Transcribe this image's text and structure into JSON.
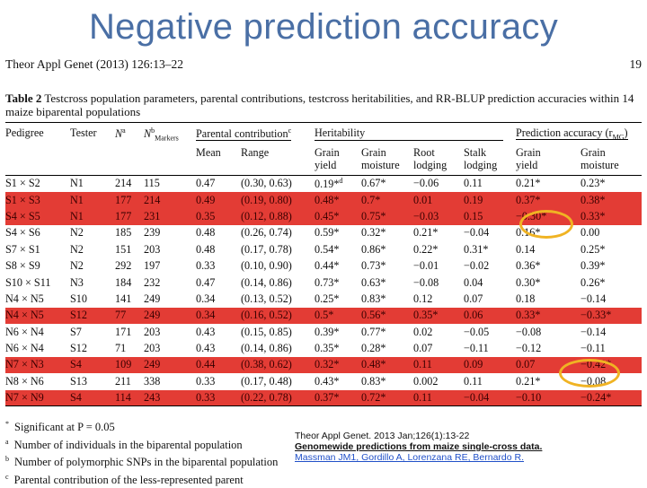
{
  "title": "Negative prediction accuracy",
  "journal": {
    "left": "Theor Appl Genet (2013) 126:13–22",
    "page": "19"
  },
  "caption": {
    "label": "Table 2",
    "text": "Testcross population parameters, parental contributions, testcross heritabilities, and RR-BLUP prediction accuracies within 14 maize biparental populations"
  },
  "headers": {
    "pedigree": "Pedigree",
    "tester": "Tester",
    "n": "N",
    "n_sup": "a",
    "markers": "N",
    "markers_sup": "b",
    "markers_sub": "Markers",
    "parental": "Parental contribution",
    "parental_sup": "c",
    "heritability": "Heritability",
    "accuracy": "Prediction accuracy (r",
    "accuracy_sub": "MG",
    "accuracy_end": ")",
    "mean": "Mean",
    "range": "Range",
    "h_gy1": "Grain",
    "h_gy2": "yield",
    "h_gm1": "Grain",
    "h_gm2": "moisture",
    "h_rl1": "Root",
    "h_rl2": "lodging",
    "h_sl1": "Stalk",
    "h_sl2": "lodging",
    "a_gy1": "Grain",
    "a_gy2": "yield",
    "a_gm1": "Grain",
    "a_gm2": "moisture"
  },
  "rows": [
    {
      "pedigree": "S1 × S2",
      "tester": "N1",
      "n": "214",
      "markers": "115",
      "mean": "0.47",
      "range": "(0.30, 0.63)",
      "gy": "0.19*",
      "gy_sup": "d",
      "gm": "0.67*",
      "rl": "−0.06",
      "sl": "0.11",
      "agy": "0.21*",
      "agm": "0.23*",
      "hl": false
    },
    {
      "pedigree": "S1 × S3",
      "tester": "N1",
      "n": "177",
      "markers": "214",
      "mean": "0.49",
      "range": "(0.19, 0.80)",
      "gy": "0.48*",
      "gy_sup": "",
      "gm": "0.7*",
      "rl": "0.01",
      "sl": "0.19",
      "agy": "0.37*",
      "agm": "0.38*",
      "hl": true
    },
    {
      "pedigree": "S4 × S5",
      "tester": "N1",
      "n": "177",
      "markers": "231",
      "mean": "0.35",
      "range": "(0.12, 0.88)",
      "gy": "0.45*",
      "gy_sup": "",
      "gm": "0.75*",
      "rl": "−0.03",
      "sl": "0.15",
      "agy": "−0.30*",
      "agm": "0.33*",
      "hl": true
    },
    {
      "pedigree": "S4 × S6",
      "tester": "N2",
      "n": "185",
      "markers": "239",
      "mean": "0.48",
      "range": "(0.26, 0.74)",
      "gy": "0.59*",
      "gy_sup": "",
      "gm": "0.32*",
      "rl": "0.21*",
      "sl": "−0.04",
      "agy": "0.16*",
      "agm": "0.00",
      "hl": false
    },
    {
      "pedigree": "S7 × S1",
      "tester": "N2",
      "n": "151",
      "markers": "203",
      "mean": "0.48",
      "range": "(0.17, 0.78)",
      "gy": "0.54*",
      "gy_sup": "",
      "gm": "0.86*",
      "rl": "0.22*",
      "sl": "0.31*",
      "agy": "0.14",
      "agm": "0.25*",
      "hl": false
    },
    {
      "pedigree": "S8 × S9",
      "tester": "N2",
      "n": "292",
      "markers": "197",
      "mean": "0.33",
      "range": "(0.10, 0.90)",
      "gy": "0.44*",
      "gy_sup": "",
      "gm": "0.73*",
      "rl": "−0.01",
      "sl": "−0.02",
      "agy": "0.36*",
      "agm": "0.39*",
      "hl": false
    },
    {
      "pedigree": "S10 × S11",
      "tester": "N3",
      "n": "184",
      "markers": "232",
      "mean": "0.47",
      "range": "(0.14, 0.86)",
      "gy": "0.73*",
      "gy_sup": "",
      "gm": "0.63*",
      "rl": "−0.08",
      "sl": "0.04",
      "agy": "0.30*",
      "agm": "0.26*",
      "hl": false
    },
    {
      "pedigree": "N4 × N5",
      "tester": "S10",
      "n": "141",
      "markers": "249",
      "mean": "0.34",
      "range": "(0.13, 0.52)",
      "gy": "0.25*",
      "gy_sup": "",
      "gm": "0.83*",
      "rl": "0.12",
      "sl": "0.07",
      "agy": "0.18",
      "agm": "−0.14",
      "hl": false
    },
    {
      "pedigree": "N4 × N5",
      "tester": "S12",
      "n": "77",
      "markers": "249",
      "mean": "0.34",
      "range": "(0.16, 0.52)",
      "gy": "0.5*",
      "gy_sup": "",
      "gm": "0.56*",
      "rl": "0.35*",
      "sl": "0.06",
      "agy": "0.33*",
      "agm": "−0.33*",
      "hl": true
    },
    {
      "pedigree": "N6 × N4",
      "tester": "S7",
      "n": "171",
      "markers": "203",
      "mean": "0.43",
      "range": "(0.15, 0.85)",
      "gy": "0.39*",
      "gy_sup": "",
      "gm": "0.77*",
      "rl": "0.02",
      "sl": "−0.05",
      "agy": "−0.08",
      "agm": "−0.14",
      "hl": false
    },
    {
      "pedigree": "N6 × N4",
      "tester": "S12",
      "n": "71",
      "markers": "203",
      "mean": "0.43",
      "range": "(0.14, 0.86)",
      "gy": "0.35*",
      "gy_sup": "",
      "gm": "0.28*",
      "rl": "0.07",
      "sl": "−0.11",
      "agy": "−0.12",
      "agm": "−0.11",
      "hl": false
    },
    {
      "pedigree": "N7 × N3",
      "tester": "S4",
      "n": "109",
      "markers": "249",
      "mean": "0.44",
      "range": "(0.38, 0.62)",
      "gy": "0.32*",
      "gy_sup": "",
      "gm": "0.48*",
      "rl": "0.11",
      "sl": "0.09",
      "agy": "0.07",
      "agm": "−0.42*",
      "hl": true
    },
    {
      "pedigree": "N8 × N6",
      "tester": "S13",
      "n": "211",
      "markers": "338",
      "mean": "0.33",
      "range": "(0.17, 0.48)",
      "gy": "0.43*",
      "gy_sup": "",
      "gm": "0.83*",
      "rl": "0.002",
      "sl": "0.11",
      "agy": "0.21*",
      "agm": "−0.08",
      "hl": false
    },
    {
      "pedigree": "N7 × N9",
      "tester": "S4",
      "n": "114",
      "markers": "243",
      "mean": "0.33",
      "range": "(0.22, 0.78)",
      "gy": "0.37*",
      "gy_sup": "",
      "gm": "0.72*",
      "rl": "0.11",
      "sl": "−0.04",
      "agy": "−0.10",
      "agm": "−0.24*",
      "hl": true
    }
  ],
  "footnotes": [
    {
      "mark": "*",
      "text": "Significant at P = 0.05"
    },
    {
      "mark": "a",
      "text": "Number of individuals in the biparental population"
    },
    {
      "mark": "b",
      "text": "Number of polymorphic SNPs in the biparental population"
    },
    {
      "mark": "c",
      "text": "Parental contribution of the less-represented parent"
    }
  ],
  "citation": {
    "line1": "Theor Appl Genet. 2013 Jan;126(1):13-22",
    "line2": "Genomewide predictions from maize single-cross data.",
    "line3": "Massman JM1, Gordillo A, Lorenzana RE, Bernardo R."
  },
  "highlight_colors": {
    "row": "#e33c35",
    "circle": "#f0b323",
    "title": "#4a6fa5"
  }
}
